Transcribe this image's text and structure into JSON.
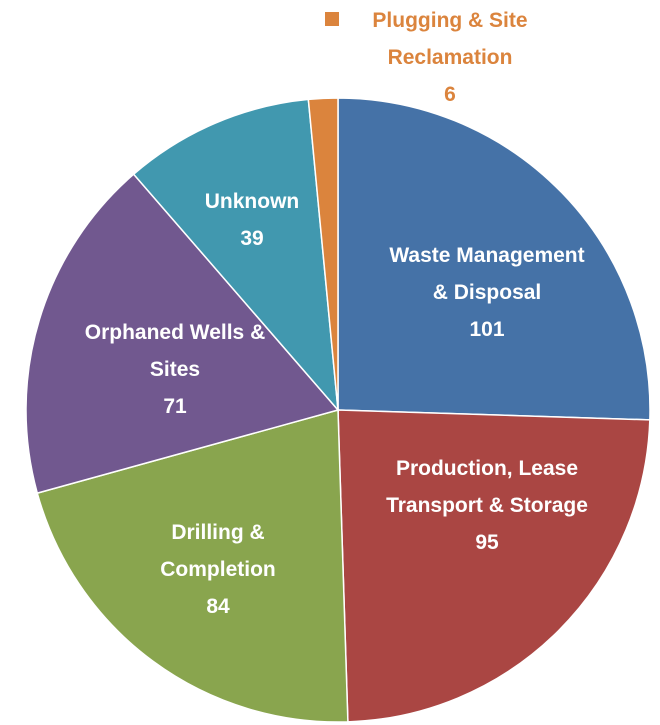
{
  "chart_data": {
    "type": "pie",
    "categories": [
      "Waste Management & Disposal",
      "Production, Lease Transport & Storage",
      "Drilling & Completion",
      "Orphaned Wells & Sites",
      "Unknown",
      "Plugging & Site Reclamation"
    ],
    "values": [
      101,
      95,
      84,
      71,
      39,
      6
    ],
    "colors": [
      "#4572a7",
      "#aa4643",
      "#89a54e",
      "#71588f",
      "#4198af",
      "#db843d"
    ]
  }
}
